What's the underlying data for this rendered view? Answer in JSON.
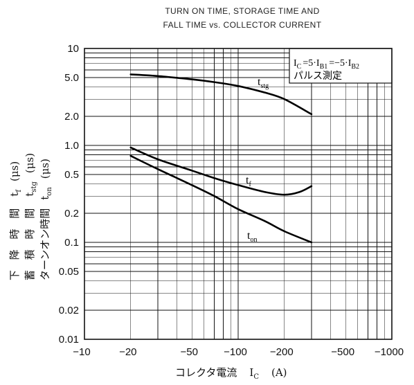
{
  "chart_data": {
    "type": "line",
    "title": [
      "TURN ON TIME, STORAGE TIME AND",
      "FALL TIME vs. COLLECTOR CURRENT"
    ],
    "x_scale": "log",
    "y_scale": "log",
    "xlim": [
      -10,
      -1000
    ],
    "ylim": [
      0.01,
      10
    ],
    "grid": true,
    "line_color": "#000000",
    "x_ticks": [
      {
        "value": -10,
        "label": "−10"
      },
      {
        "value": -20,
        "label": "−20"
      },
      {
        "value": -50,
        "label": "−50"
      },
      {
        "value": -100,
        "label": "−100"
      },
      {
        "value": -200,
        "label": "−200"
      },
      {
        "value": -500,
        "label": "−500"
      },
      {
        "value": -1000,
        "label": "−1000"
      }
    ],
    "y_ticks": [
      {
        "value": 10,
        "label": "10"
      },
      {
        "value": 5,
        "label": "5.0"
      },
      {
        "value": 2,
        "label": "2.0"
      },
      {
        "value": 1,
        "label": "1.0"
      },
      {
        "value": 0.5,
        "label": "0.5"
      },
      {
        "value": 0.2,
        "label": "0.2"
      },
      {
        "value": 0.1,
        "label": "0.1"
      },
      {
        "value": 0.05,
        "label": "0.05"
      },
      {
        "value": 0.02,
        "label": "0.02"
      },
      {
        "value": 0.01,
        "label": "0.01"
      }
    ],
    "xlabel": [
      {
        "text": "コレクタ電流",
        "sub": false
      },
      {
        "text": "I",
        "sub": false
      },
      {
        "text": "C",
        "sub": true
      },
      {
        "text": "(A)",
        "sub": false
      }
    ],
    "ylabel": [
      [
        {
          "text": "下 降 時 間",
          "sub": false
        },
        {
          "text": "t",
          "sub": false
        },
        {
          "text": "f",
          "sub": true
        },
        {
          "text": "(μs)",
          "sub": false
        }
      ],
      [
        {
          "text": "蓄 積 時 間",
          "sub": false
        },
        {
          "text": "t",
          "sub": false
        },
        {
          "text": "stg",
          "sub": true
        },
        {
          "text": "(μs)",
          "sub": false
        }
      ],
      [
        {
          "text": "ターンオン時間",
          "sub": false
        },
        {
          "text": "t",
          "sub": false
        },
        {
          "text": "on",
          "sub": true
        },
        {
          "text": "(μs)",
          "sub": false
        }
      ]
    ],
    "annotation_placement": "top-right",
    "annotation": [
      [
        {
          "text": "I",
          "sub": false
        },
        {
          "text": "C",
          "sub": true
        },
        {
          "text": "=5·I",
          "sub": false
        },
        {
          "text": "B1",
          "sub": true
        },
        {
          "text": "=−5·I",
          "sub": false
        },
        {
          "text": "B2",
          "sub": true
        }
      ],
      [
        {
          "text": "パルス測定",
          "sub": false
        }
      ]
    ],
    "series": [
      {
        "name": "tstg",
        "symbol": "t",
        "subscript": "stg",
        "x": [
          -20,
          -30,
          -50,
          -70,
          -100,
          -150,
          -200,
          -300
        ],
        "y": [
          5.4,
          5.2,
          4.8,
          4.5,
          4.1,
          3.5,
          3.0,
          2.1
        ]
      },
      {
        "name": "tf",
        "symbol": "t",
        "subscript": "f",
        "x": [
          -20,
          -30,
          -50,
          -70,
          -100,
          -150,
          -200,
          -250,
          -300
        ],
        "y": [
          0.95,
          0.72,
          0.55,
          0.46,
          0.39,
          0.33,
          0.31,
          0.33,
          0.38
        ]
      },
      {
        "name": "ton",
        "symbol": "t",
        "subscript": "on",
        "x": [
          -20,
          -30,
          -50,
          -70,
          -100,
          -150,
          -200,
          -300
        ],
        "y": [
          0.78,
          0.57,
          0.39,
          0.3,
          0.22,
          0.165,
          0.13,
          0.1
        ]
      }
    ]
  }
}
